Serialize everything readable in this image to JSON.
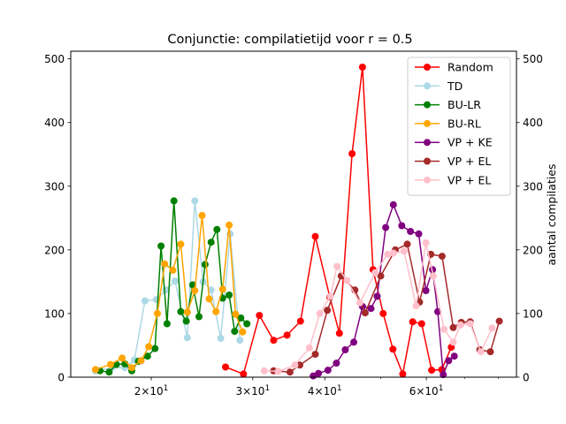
{
  "chart_data": {
    "type": "line",
    "title": "Conjunctie: compilatietijd voor r = 0.5",
    "xlabel": "",
    "ylabel": "",
    "ylabel_right": "aantal compilaties",
    "xscale": "log",
    "xlim": [
      14.5,
      86
    ],
    "ylim": [
      0,
      512
    ],
    "ylim_right": [
      0,
      512
    ],
    "x_ticks": [
      {
        "value": 20,
        "base": "2",
        "rest": "×10",
        "exp": "1"
      },
      {
        "value": 30,
        "base": "3",
        "rest": "×10",
        "exp": "1"
      },
      {
        "value": 40,
        "base": "4",
        "rest": "×10",
        "exp": "1"
      },
      {
        "value": 60,
        "base": "6",
        "rest": "×10",
        "exp": "1"
      }
    ],
    "y_ticks": [
      0,
      100,
      200,
      300,
      400,
      500
    ],
    "y_ticks_right": [
      0,
      100,
      200,
      300,
      400,
      500
    ],
    "legend_position": "top-right",
    "series": [
      {
        "name": "Random",
        "color": "#ff0000",
        "x": [
          26.9,
          28.9,
          30.8,
          32.6,
          34.4,
          36.3,
          38.5,
          40.8,
          42.4,
          44.6,
          46.5,
          48.5,
          50.5,
          52.5,
          54.6,
          56.8,
          58.9,
          61.3,
          63.8,
          66.3
        ],
        "y": [
          16,
          5,
          97,
          58,
          66,
          88,
          221,
          126,
          69,
          351,
          487,
          169,
          100,
          44,
          5,
          87,
          84,
          11,
          12,
          47
        ]
      },
      {
        "name": "TD",
        "color": "#add8e6",
        "x": [
          16.0,
          17.1,
          18.0,
          18.7,
          19.5,
          20.4,
          21.2,
          22.0,
          23.1,
          23.8,
          24.6,
          25.4,
          26.4,
          27.4,
          28.5
        ],
        "y": [
          10,
          15,
          15,
          27,
          120,
          122,
          137,
          151,
          62,
          277,
          150,
          137,
          61,
          225,
          58
        ]
      },
      {
        "name": "BU-LR",
        "color": "#008000",
        "x": [
          16.3,
          16.9,
          17.4,
          18.0,
          18.5,
          19.0,
          19.7,
          20.3,
          20.8,
          21.3,
          21.9,
          22.5,
          23.0,
          23.6,
          24.2,
          24.8,
          25.4,
          26.0,
          26.6,
          27.3,
          27.9,
          28.6,
          29.3
        ],
        "y": [
          10,
          8,
          20,
          21,
          10,
          25,
          33,
          45,
          206,
          84,
          277,
          103,
          88,
          145,
          95,
          177,
          212,
          232,
          124,
          129,
          72,
          93,
          84
        ]
      },
      {
        "name": "BU-RL",
        "color": "#ffa500",
        "x": [
          16.0,
          17.0,
          17.8,
          18.5,
          19.2,
          19.8,
          20.5,
          21.1,
          21.8,
          22.5,
          23.1,
          23.8,
          24.5,
          25.2,
          25.9,
          26.6,
          27.3,
          28.0,
          28.8
        ],
        "y": [
          12,
          20,
          30,
          15,
          26,
          48,
          100,
          178,
          168,
          209,
          102,
          136,
          254,
          123,
          103,
          138,
          239,
          99,
          71
        ]
      },
      {
        "name": "VP + KE",
        "color": "#800080",
        "x": [
          38.2,
          39.0,
          40.5,
          41.9,
          43.4,
          44.9,
          46.5,
          48.1,
          49.3,
          51.0,
          52.6,
          54.4,
          56.3,
          58.2,
          59.9,
          61.5,
          62.8,
          64.2,
          65.6,
          67.1
        ],
        "y": [
          2,
          6,
          11,
          22,
          43,
          55,
          111,
          108,
          127,
          235,
          271,
          238,
          229,
          225,
          136,
          169,
          103,
          4,
          26,
          33
        ]
      },
      {
        "name": "VP + EL",
        "color": "#a52a2a",
        "x": [
          32.6,
          34.8,
          36.2,
          38.5,
          40.4,
          42.7,
          45.1,
          47.0,
          50.0,
          53.0,
          55.6,
          58.4,
          61.1,
          63.9,
          66.8,
          69.0,
          71.5,
          74.3,
          77.5,
          80.3
        ],
        "y": [
          10,
          8,
          19,
          36,
          105,
          159,
          137,
          101,
          159,
          200,
          209,
          118,
          193,
          190,
          78,
          86,
          87,
          43,
          40,
          88
        ]
      },
      {
        "name": "VP + EL",
        "color": "#ffc0cb",
        "x": [
          31.4,
          33.2,
          35.5,
          37.6,
          39.2,
          40.9,
          42.0,
          43.7,
          46.0,
          48.9,
          51.4,
          52.6,
          54.9,
          57.6,
          59.9,
          61.7,
          64.4,
          66.8,
          68.8,
          71.5,
          74.6,
          78.0
        ],
        "y": [
          10,
          9,
          19,
          46,
          100,
          127,
          174,
          152,
          117,
          164,
          193,
          195,
          198,
          112,
          211,
          159,
          75,
          55,
          82,
          84,
          40,
          77
        ]
      }
    ]
  }
}
